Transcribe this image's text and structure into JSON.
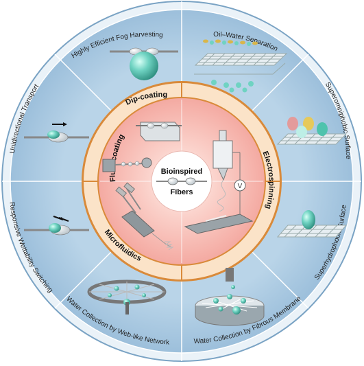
{
  "center": {
    "line1": "Bioinspired",
    "line2": "Fibers"
  },
  "methods": {
    "dip_coating": "Dip-coating",
    "electrospinning": "Electrospinning",
    "microfluidics": "Microfluidics",
    "fluid_coating": "Fluid-coating"
  },
  "applications": {
    "fog": "Highly Efficient Fog Harvesting",
    "oil_water": "Oil–Water Separation",
    "superomniphobic": "Superomniphobic Surface",
    "superhydrophobic": "Superhydrophobic Surface",
    "fibrous_membrane": "Water Collection by Fibrous Membrane",
    "web_network": "Water Collection by Web-like Network",
    "switching": "Responsive Wettability Switching",
    "unidirectional": "Unidirectional Transport"
  },
  "voltage_symbol": "V",
  "colors": {
    "outer_ring": "#aac8e0",
    "outer_ring_border": "#7aa3c4",
    "inner_ring": "#f8dcc0",
    "inner_ring_border": "#d98a3a",
    "inner_disc": "#f6b8b0",
    "droplet": "#6fd3c2"
  }
}
